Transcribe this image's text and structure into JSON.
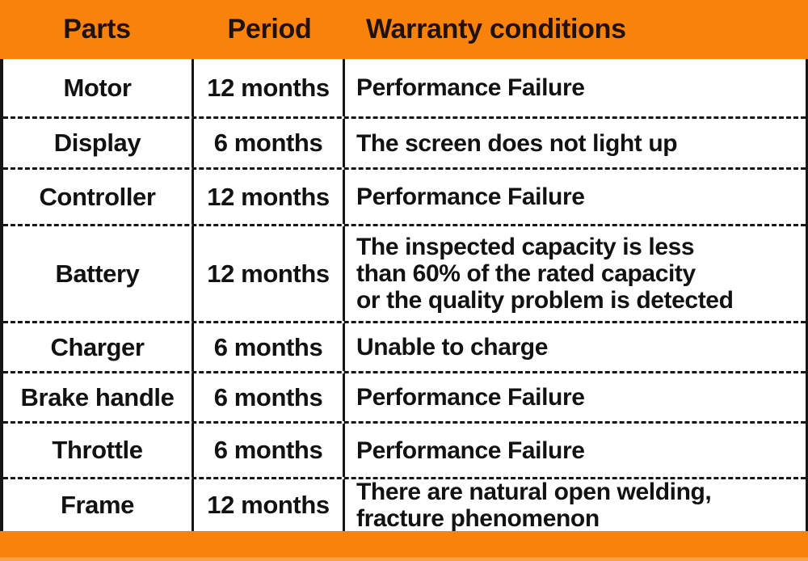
{
  "colors": {
    "accent_orange": "#F8820C",
    "footer_edge_light": "#FCA14D",
    "header_text": "#201206",
    "body_text": "#121212",
    "border": "#161616",
    "row_background": "#FFFFFF"
  },
  "table": {
    "headers": [
      {
        "label": "Parts"
      },
      {
        "label": "Period"
      },
      {
        "label": "Warranty conditions"
      }
    ],
    "rows": [
      {
        "part": "Motor",
        "period": "12 months",
        "condition": "Performance Failure"
      },
      {
        "part": "Display",
        "period": "6 months",
        "condition": "The screen does not light up"
      },
      {
        "part": "Controller",
        "period": "12 months",
        "condition": "Performance Failure"
      },
      {
        "part": "Battery",
        "period": "12 months",
        "condition": "The inspected capacity is less\nthan 60% of the rated capacity\nor the quality problem is detected"
      },
      {
        "part": "Charger",
        "period": "6 months",
        "condition": "Unable to charge"
      },
      {
        "part": "Brake handle",
        "period": "6 months",
        "condition": "Performance Failure"
      },
      {
        "part": "Throttle",
        "period": "6 months",
        "condition": "Performance Failure"
      },
      {
        "part": "Frame",
        "period": "12 months",
        "condition": "There are natural open welding,\nfracture phenomenon"
      }
    ]
  }
}
